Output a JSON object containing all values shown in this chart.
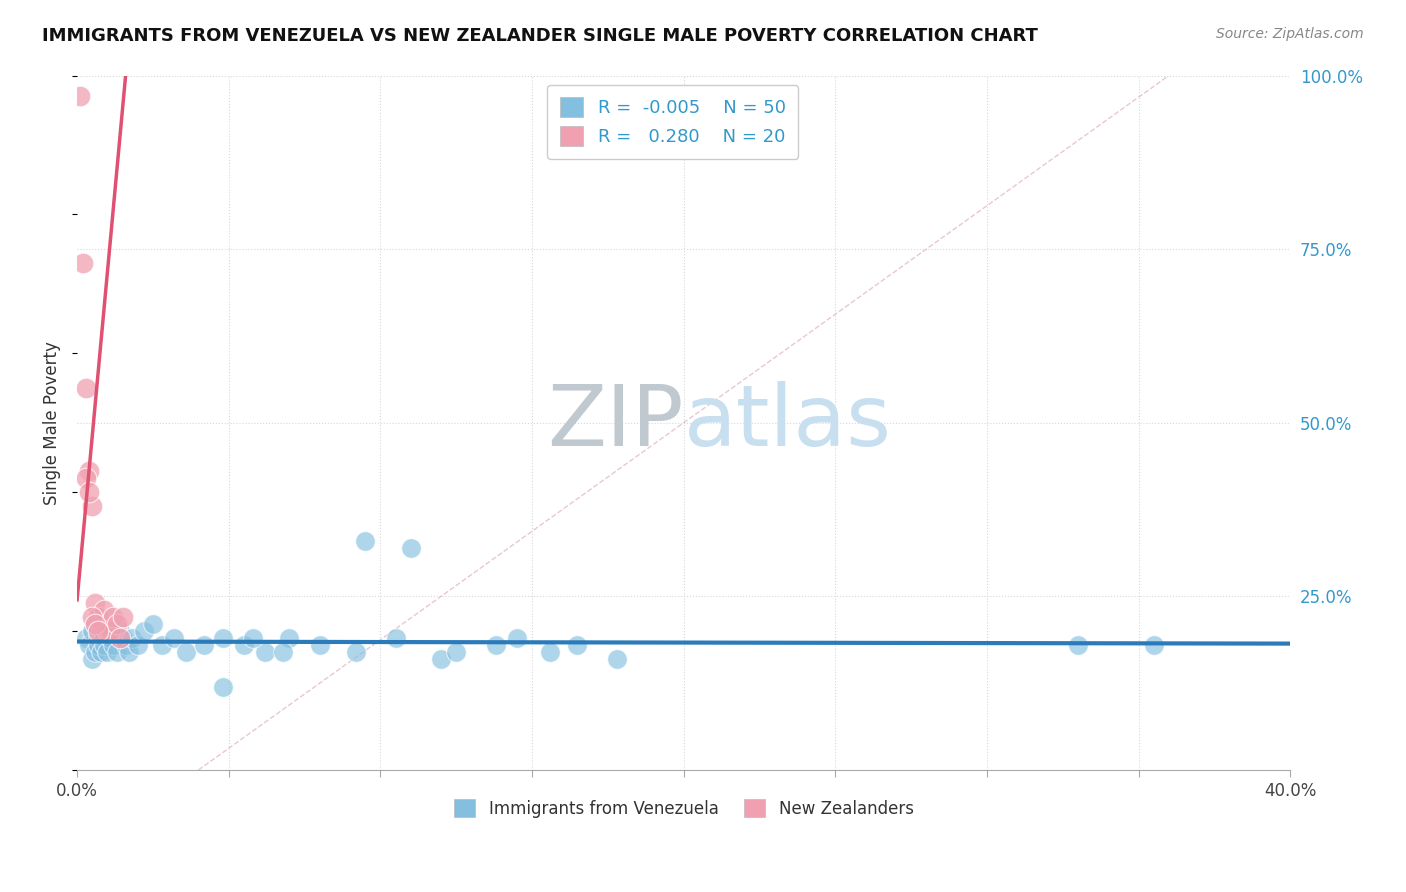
{
  "title": "IMMIGRANTS FROM VENEZUELA VS NEW ZEALANDER SINGLE MALE POVERTY CORRELATION CHART",
  "source": "Source: ZipAtlas.com",
  "ylabel": "Single Male Poverty",
  "xlim": [
    0.0,
    0.4
  ],
  "ylim": [
    0.0,
    1.0
  ],
  "xtick_positions": [
    0.0,
    0.05,
    0.1,
    0.15,
    0.2,
    0.25,
    0.3,
    0.35,
    0.4
  ],
  "ytick_positions": [
    0.0,
    0.25,
    0.5,
    0.75,
    1.0
  ],
  "yticklabels_right": [
    "",
    "25.0%",
    "50.0%",
    "75.0%",
    "100.0%"
  ],
  "legend_r1": "-0.005",
  "legend_n1": "50",
  "legend_r2": "0.280",
  "legend_n2": "20",
  "color_blue": "#85bfe0",
  "color_pink": "#f0a0b0",
  "color_blue_line": "#2b7bba",
  "color_pink_line": "#e05070",
  "color_diag": "#c8c8c8",
  "color_grid": "#d8d8d8",
  "watermark_color": "#c8dff0",
  "blue_scatter_x": [
    0.003,
    0.004,
    0.005,
    0.005,
    0.006,
    0.006,
    0.007,
    0.007,
    0.008,
    0.008,
    0.009,
    0.009,
    0.01,
    0.01,
    0.011,
    0.012,
    0.013,
    0.014,
    0.015,
    0.016,
    0.017,
    0.018,
    0.02,
    0.022,
    0.025,
    0.028,
    0.032,
    0.036,
    0.042,
    0.048,
    0.055,
    0.062,
    0.07,
    0.08,
    0.092,
    0.105,
    0.12,
    0.138,
    0.156,
    0.178,
    0.095,
    0.11,
    0.125,
    0.145,
    0.165,
    0.068,
    0.058,
    0.048,
    0.33,
    0.355
  ],
  "blue_scatter_y": [
    0.19,
    0.18,
    0.2,
    0.16,
    0.21,
    0.17,
    0.19,
    0.18,
    0.2,
    0.17,
    0.19,
    0.18,
    0.2,
    0.17,
    0.19,
    0.18,
    0.17,
    0.2,
    0.19,
    0.18,
    0.17,
    0.19,
    0.18,
    0.2,
    0.21,
    0.18,
    0.19,
    0.17,
    0.18,
    0.19,
    0.18,
    0.17,
    0.19,
    0.18,
    0.17,
    0.19,
    0.16,
    0.18,
    0.17,
    0.16,
    0.33,
    0.32,
    0.17,
    0.19,
    0.18,
    0.17,
    0.19,
    0.12,
    0.18,
    0.18
  ],
  "pink_scatter_x": [
    0.001,
    0.002,
    0.003,
    0.004,
    0.005,
    0.006,
    0.007,
    0.008,
    0.009,
    0.01,
    0.011,
    0.012,
    0.013,
    0.014,
    0.015,
    0.005,
    0.006,
    0.007,
    0.003,
    0.004
  ],
  "pink_scatter_y": [
    0.97,
    0.73,
    0.55,
    0.43,
    0.38,
    0.24,
    0.22,
    0.21,
    0.23,
    0.2,
    0.2,
    0.22,
    0.21,
    0.19,
    0.22,
    0.22,
    0.21,
    0.2,
    0.42,
    0.4
  ],
  "blue_line_x": [
    0.0,
    0.4
  ],
  "blue_line_y": [
    0.185,
    0.182
  ],
  "pink_line_x": [
    0.0,
    0.016
  ],
  "pink_line_y": [
    0.245,
    1.0
  ]
}
